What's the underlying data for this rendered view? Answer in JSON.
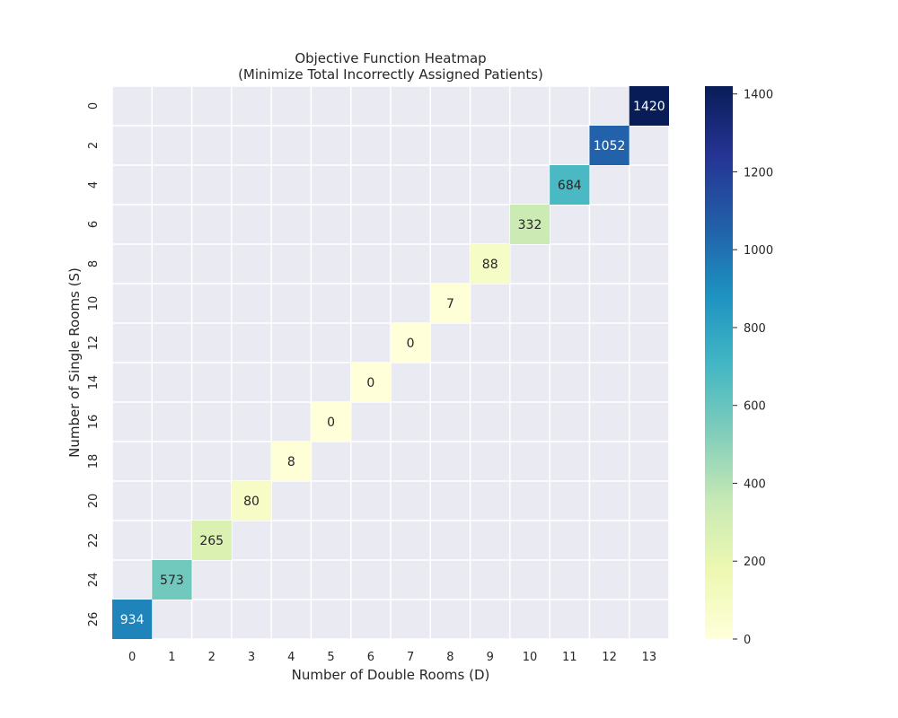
{
  "chart_data": {
    "type": "heatmap",
    "title_lines": [
      "Objective Function Heatmap",
      "(Minimize Total Incorrectly Assigned Patients)"
    ],
    "xlabel": "Number of Double Rooms (D)",
    "ylabel": "Number of Single Rooms (S)",
    "x_tick_labels": [
      "0",
      "1",
      "2",
      "3",
      "4",
      "5",
      "6",
      "7",
      "8",
      "9",
      "10",
      "11",
      "12",
      "13"
    ],
    "y_tick_labels": [
      "0",
      "2",
      "4",
      "6",
      "8",
      "10",
      "12",
      "14",
      "16",
      "18",
      "20",
      "22",
      "24",
      "26"
    ],
    "cells": [
      {
        "S": 0,
        "D": 13,
        "value": 1420
      },
      {
        "S": 2,
        "D": 12,
        "value": 1052
      },
      {
        "S": 4,
        "D": 11,
        "value": 684
      },
      {
        "S": 6,
        "D": 10,
        "value": 332
      },
      {
        "S": 8,
        "D": 9,
        "value": 88
      },
      {
        "S": 10,
        "D": 8,
        "value": 7
      },
      {
        "S": 12,
        "D": 7,
        "value": 0
      },
      {
        "S": 14,
        "D": 6,
        "value": 0
      },
      {
        "S": 16,
        "D": 5,
        "value": 0
      },
      {
        "S": 18,
        "D": 4,
        "value": 8
      },
      {
        "S": 20,
        "D": 3,
        "value": 80
      },
      {
        "S": 22,
        "D": 2,
        "value": 265
      },
      {
        "S": 24,
        "D": 1,
        "value": 573
      },
      {
        "S": 26,
        "D": 0,
        "value": 934
      }
    ],
    "colormap": "YlGnBu",
    "colorbar": {
      "min": 0,
      "max": 1420,
      "ticks": [
        0,
        200,
        400,
        600,
        800,
        1000,
        1200,
        1400
      ]
    },
    "grid": true,
    "background": "#eaeaf2"
  }
}
